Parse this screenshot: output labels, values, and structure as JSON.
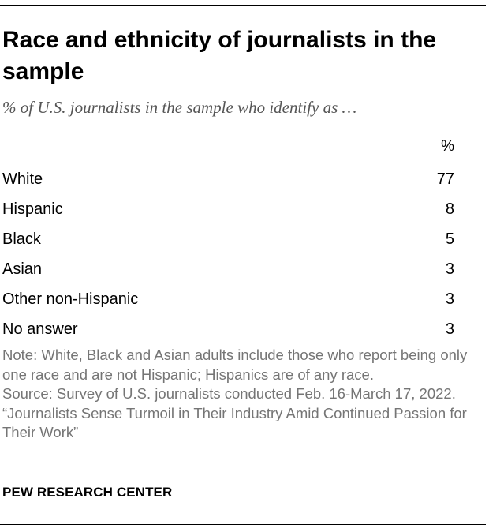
{
  "chart_data": {
    "type": "table",
    "title": "Race and ethnicity of journalists in the sample",
    "subtitle": "% of U.S. journalists in the sample who identify as …",
    "column_header": "%",
    "categories": [
      "White",
      "Hispanic",
      "Black",
      "Asian",
      "Other non-Hispanic",
      "No answer"
    ],
    "values": [
      77,
      8,
      5,
      3,
      3,
      3
    ]
  },
  "notes": {
    "note": "Note: White, Black and Asian adults include those who report being only one race and are not Hispanic; Hispanics are of any race.",
    "source": "Source: Survey of U.S. journalists conducted Feb. 16-March 17, 2022.",
    "report": "“Journalists Sense Turmoil in Their Industry Amid Continued Passion for Their Work”"
  },
  "brand": "PEW RESEARCH CENTER"
}
